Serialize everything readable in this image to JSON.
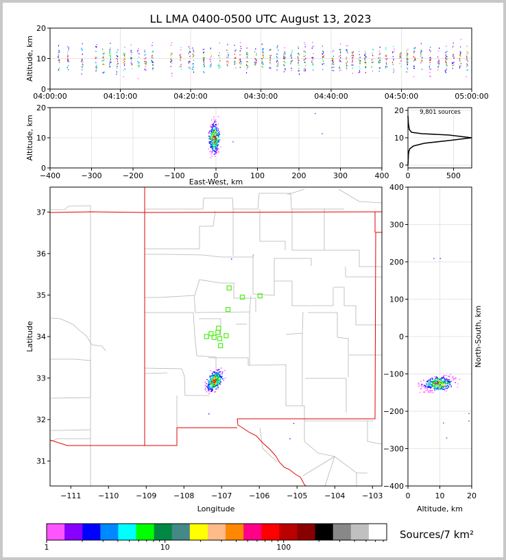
{
  "chart_data": [
    {
      "type": "scatter",
      "id": "time_height",
      "title": "LL LMA 0400-0500 UTC August 13, 2023",
      "xlabel": "",
      "ylabel": "Altitude, km",
      "ylim": [
        0,
        20
      ],
      "yticks": [
        "0",
        "10",
        "20"
      ],
      "xticks": [
        "04:00:00",
        "04:10:00",
        "04:20:00",
        "04:30:00",
        "04:40:00",
        "04:50:00",
        "05:00:00"
      ],
      "xlim_minutes": [
        0,
        60
      ],
      "active_minutes": [
        1.2,
        2.5,
        4.5,
        6.5,
        7.5,
        8.5,
        9.5,
        10.5,
        11.5,
        12.5,
        13.5,
        14.5,
        17.2,
        18.5,
        19.8,
        20.3,
        21.8,
        22.8,
        24.0,
        25.2,
        26.3,
        27.0,
        28.0,
        29.2,
        30.2,
        31.3,
        32.3,
        33.3,
        34.3,
        35.3,
        36.2,
        37.3,
        38.8,
        40.2,
        41.2,
        42.2,
        43.0,
        44.0,
        44.8,
        45.8,
        46.8,
        47.8,
        48.8,
        49.8,
        50.8,
        51.8,
        52.8,
        54.0,
        55.2,
        56.3,
        57.3,
        58.3,
        59.3
      ],
      "core_altitude_km": [
        8,
        12
      ]
    },
    {
      "type": "scatter",
      "id": "east_west_height",
      "xlabel": "East-West, km",
      "ylabel": "Altitude, km",
      "xlim": [
        -400,
        400
      ],
      "ylim": [
        0,
        20
      ],
      "xticks": [
        "−400",
        "−300",
        "−200",
        "−100",
        "0",
        "100",
        "200",
        "300",
        "400"
      ],
      "yticks": [
        "0",
        "10",
        "20"
      ],
      "cluster": {
        "x_range_km": [
          -25,
          15
        ],
        "alt_range_km": [
          1,
          19
        ]
      },
      "outliers": [
        [
          238,
          18.2
        ],
        [
          255,
          11.5
        ],
        [
          40,
          8.8
        ]
      ]
    },
    {
      "type": "line",
      "id": "altitude_histogram",
      "annotation": "9,801 sources",
      "xlim": [
        0,
        700
      ],
      "ylim": [
        0,
        21
      ],
      "xticks": [
        "0",
        "500"
      ],
      "yticks": [
        "0",
        "10",
        "20"
      ],
      "profile": [
        [
          0,
          0
        ],
        [
          5,
          4
        ],
        [
          10,
          5
        ],
        [
          20,
          6
        ],
        [
          60,
          7
        ],
        [
          180,
          8
        ],
        [
          450,
          9
        ],
        [
          700,
          10
        ],
        [
          450,
          11
        ],
        [
          150,
          11.5
        ],
        [
          40,
          12
        ],
        [
          15,
          13
        ],
        [
          5,
          15
        ],
        [
          0,
          18
        ]
      ]
    },
    {
      "type": "scatter",
      "id": "plan_view",
      "xlabel": "Longitude",
      "ylabel": "Latitude",
      "xlim": [
        -111.55,
        -102.75
      ],
      "ylim": [
        30.4,
        37.6
      ],
      "xticks": [
        "−111",
        "−110",
        "−109",
        "−108",
        "−107",
        "−106",
        "−105",
        "−104",
        "−103"
      ],
      "yticks": [
        "31",
        "32",
        "33",
        "34",
        "35",
        "36",
        "37"
      ],
      "stations": [
        [
          -106.8,
          35.17
        ],
        [
          -106.45,
          34.95
        ],
        [
          -105.98,
          34.98
        ],
        [
          -106.83,
          34.65
        ],
        [
          -107.08,
          34.2
        ],
        [
          -107.28,
          34.07
        ],
        [
          -107.1,
          34.1
        ],
        [
          -107.2,
          33.98
        ],
        [
          -107.4,
          34.0
        ],
        [
          -107.05,
          33.95
        ],
        [
          -106.88,
          34.02
        ],
        [
          -107.03,
          33.78
        ]
      ],
      "storm_center": [
        -107.2,
        32.95
      ],
      "outliers": [
        [
          -106.75,
          35.88
        ],
        [
          -107.35,
          32.15
        ],
        [
          -105.1,
          31.92
        ],
        [
          -105.2,
          31.55
        ]
      ]
    },
    {
      "type": "scatter",
      "id": "north_south_height",
      "xlabel": "Altitude, km",
      "ylabel": "North-South, km",
      "xlim": [
        0,
        20
      ],
      "ylim": [
        -400,
        400
      ],
      "xticks": [
        "0",
        "10",
        "20"
      ],
      "yticks": [
        "400",
        "300",
        "200",
        "100",
        "0",
        "−100",
        "−200",
        "−300",
        "−400"
      ],
      "cluster": {
        "alt_range_km": [
          1,
          20
        ],
        "ns_range_km": [
          -160,
          -90
        ]
      },
      "outliers": [
        [
          8,
          210
        ],
        [
          10,
          210
        ],
        [
          11,
          -230
        ],
        [
          12,
          -270
        ],
        [
          19,
          -205
        ],
        [
          19,
          -225
        ]
      ]
    },
    {
      "type": "heatmap",
      "id": "colorbar",
      "label": "Sources/7 km²",
      "tick_labels": [
        "1",
        "10",
        "100"
      ],
      "colors": [
        "#ff55ff",
        "#8800ff",
        "#0000ff",
        "#0088ff",
        "#00ffff",
        "#00ff00",
        "#008844",
        "#448888",
        "#ffff00",
        "#ffbb88",
        "#ff8800",
        "#ff0088",
        "#ff0000",
        "#bb0000",
        "#880000",
        "#000000",
        "#888888",
        "#c0c0c0",
        "#ffffff"
      ]
    }
  ]
}
